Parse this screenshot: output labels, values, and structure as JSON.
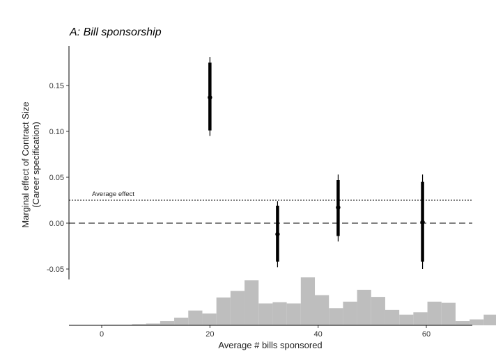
{
  "chart_data": {
    "type": "scatter",
    "title": "A: Bill sponsorship",
    "xlabel": "Average # bills sponsored",
    "ylabel": [
      "Marginal effect of Contract Size",
      "(Career specification)"
    ],
    "xlim": [
      -5,
      68
    ],
    "ylim": [
      -0.06,
      0.19
    ],
    "x_ticks": [
      0,
      20,
      40,
      60
    ],
    "y_ticks": [
      -0.05,
      0.0,
      0.05,
      0.1,
      0.15
    ],
    "y_tick_labels": [
      "-0.05",
      "0.00",
      "0.05",
      "0.10",
      "0.15"
    ],
    "points": [
      {
        "x": 20.0,
        "y": 0.137,
        "ci90": [
          0.101,
          0.175
        ],
        "ci95": [
          0.095,
          0.181
        ]
      },
      {
        "x": 32.5,
        "y": -0.012,
        "ci90": [
          -0.042,
          0.019
        ],
        "ci95": [
          -0.048,
          0.024
        ]
      },
      {
        "x": 43.7,
        "y": 0.017,
        "ci90": [
          -0.014,
          0.047
        ],
        "ci95": [
          -0.02,
          0.053
        ]
      },
      {
        "x": 59.3,
        "y": 0.001,
        "ci90": [
          -0.042,
          0.045
        ],
        "ci95": [
          -0.05,
          0.053
        ]
      }
    ],
    "reference_lines": [
      {
        "y": 0.0,
        "style": "dashed"
      },
      {
        "y": 0.025,
        "style": "dotted",
        "label": "Average effect"
      }
    ],
    "histogram": {
      "bin_width": 2.6,
      "start": -4.8,
      "counts": [
        0,
        0.5,
        1,
        1,
        2,
        3,
        7,
        13,
        25,
        20,
        47,
        58,
        76,
        37,
        39,
        37,
        81,
        51,
        29,
        40,
        60,
        48,
        26,
        18,
        22,
        40,
        38,
        7,
        10,
        18
      ]
    },
    "colors": {
      "points": "#000000",
      "histogram": "#bebebe"
    }
  }
}
